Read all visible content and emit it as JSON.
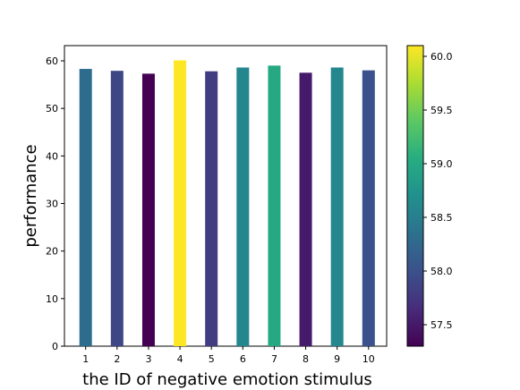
{
  "chart_data": {
    "type": "bar",
    "categories": [
      "1",
      "2",
      "3",
      "4",
      "5",
      "6",
      "7",
      "8",
      "9",
      "10"
    ],
    "values": [
      58.3,
      57.9,
      57.3,
      60.1,
      57.8,
      58.6,
      59.0,
      57.5,
      58.6,
      58.0
    ],
    "xlabel": "the ID of negative emotion stimulus",
    "ylabel": "performance",
    "ylim": [
      0,
      63.2
    ],
    "yticks": [
      "0",
      "10",
      "20",
      "30",
      "40",
      "50",
      "60"
    ],
    "grid": false,
    "colormap": "viridis",
    "colorbar": {
      "range": [
        57.3,
        60.1
      ],
      "ticks": [
        "57.5",
        "58.0",
        "58.5",
        "59.0",
        "59.5",
        "60.0"
      ]
    }
  }
}
